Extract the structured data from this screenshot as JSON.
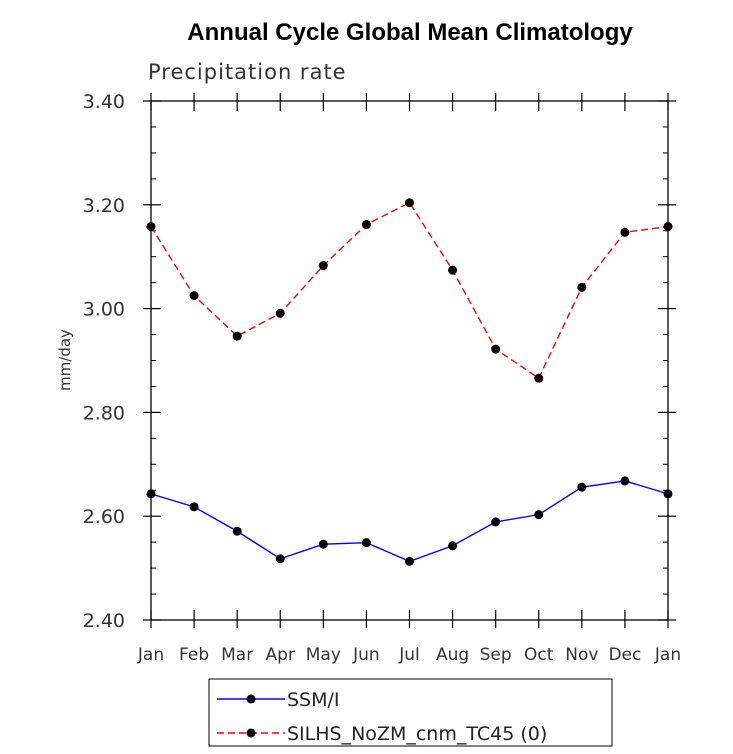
{
  "chart_data": {
    "type": "line",
    "title": "Annual Cycle Global Mean Climatology",
    "subtitle": "Precipitation rate",
    "ylabel": "mm/day",
    "xlabel": "",
    "categories": [
      "Jan",
      "Feb",
      "Mar",
      "Apr",
      "May",
      "Jun",
      "Jul",
      "Aug",
      "Sep",
      "Oct",
      "Nov",
      "Dec",
      "Jan"
    ],
    "ylim": [
      2.4,
      3.4
    ],
    "yticks": [
      2.4,
      2.6,
      2.8,
      3.0,
      3.2,
      3.4
    ],
    "ytick_labels": [
      "2.40",
      "2.60",
      "2.80",
      "3.00",
      "3.20",
      "3.40"
    ],
    "legend_position": "bottom",
    "series": [
      {
        "name": "SSM/I",
        "color": "#0000ff",
        "dash": "solid",
        "values": [
          2.643,
          2.618,
          2.571,
          2.518,
          2.546,
          2.549,
          2.513,
          2.543,
          2.589,
          2.603,
          2.656,
          2.668,
          2.643
        ]
      },
      {
        "name": "SILHS_NoZM_cnm_TC45 (0)",
        "color": "#ff0000",
        "dash": "dashed",
        "values": [
          3.158,
          3.025,
          2.947,
          2.991,
          3.083,
          3.162,
          3.204,
          3.074,
          2.922,
          2.866,
          3.041,
          3.147,
          3.158
        ]
      }
    ]
  }
}
